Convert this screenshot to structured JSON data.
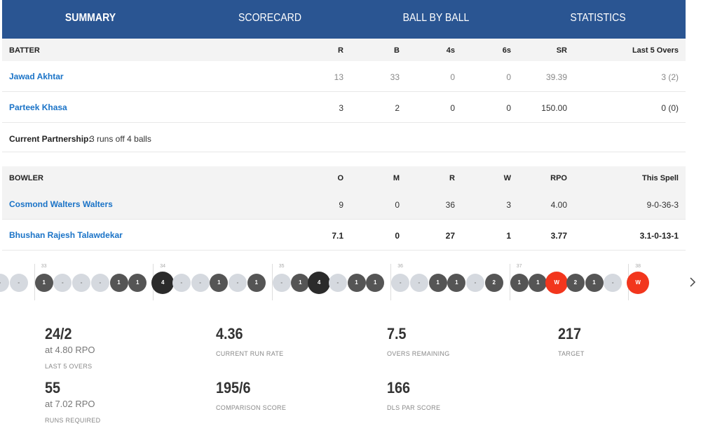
{
  "tabs": [
    "SUMMARY",
    "SCORECARD",
    "BALL BY BALL",
    "STATISTICS"
  ],
  "batting": {
    "headers": [
      "BATTER",
      "R",
      "B",
      "4s",
      "6s",
      "SR",
      "Last 5 Overs"
    ],
    "rows": [
      [
        "Jawad Akhtar",
        "13",
        "33",
        "0",
        "0",
        "39.39",
        "3 (2)"
      ],
      [
        "Parteek Khasa",
        "3",
        "2",
        "0",
        "0",
        "150.00",
        "0 (0)"
      ]
    ]
  },
  "partnership": {
    "label": "Current Partnership:",
    "value": "3 runs off 4 balls"
  },
  "bowling": {
    "headers": [
      "BOWLER",
      "O",
      "M",
      "R",
      "W",
      "RPO",
      "This Spell"
    ],
    "rows": [
      [
        "Cosmond Walters Walters",
        "9",
        "0",
        "36",
        "3",
        "4.00",
        "9-0-36-3"
      ],
      [
        "Bhushan Rajesh Talawdekar",
        "7.1",
        "0",
        "27",
        "1",
        "3.77",
        "3.1-0-13-1"
      ]
    ]
  },
  "timeline": [
    {
      "over": null,
      "balls": [
        "-",
        "-"
      ]
    },
    {
      "over": "33",
      "balls": [
        "1",
        "-",
        "-",
        "-",
        "1",
        "1"
      ]
    },
    {
      "over": "34",
      "balls": [
        "4",
        "-",
        "-",
        "1",
        "-",
        "1"
      ]
    },
    {
      "over": "35",
      "balls": [
        "-",
        "1",
        "4",
        "-",
        "1",
        "1"
      ]
    },
    {
      "over": "36",
      "balls": [
        "-",
        "-",
        "1",
        "1",
        "-",
        "2"
      ]
    },
    {
      "over": "37",
      "balls": [
        "1",
        "1",
        "W",
        "2",
        "1",
        "-"
      ]
    },
    {
      "over": "38",
      "balls": [
        "W"
      ]
    }
  ],
  "stats": [
    [
      {
        "value": "24/2",
        "sub": "at 4.80 RPO",
        "label": "LAST 5 OVERS"
      },
      {
        "value": "4.36",
        "label": "CURRENT RUN RATE"
      },
      {
        "value": "7.5",
        "label": "OVERS REMAINING"
      },
      {
        "value": "217",
        "label": "TARGET"
      }
    ],
    [
      {
        "value": "55",
        "sub": "at 7.02 RPO",
        "label": "RUNS REQUIRED"
      },
      {
        "value": "195/6",
        "label": "COMPARISON SCORE"
      },
      {
        "value": "166",
        "label": "DLS PAR SCORE"
      }
    ]
  ]
}
